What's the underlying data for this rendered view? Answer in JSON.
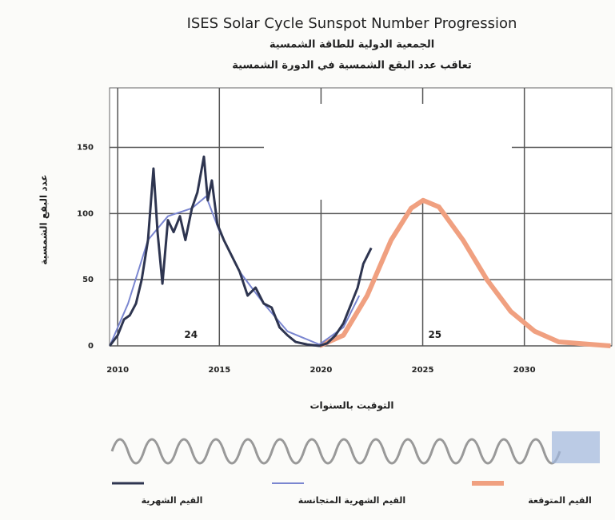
{
  "chart_data": {
    "type": "line",
    "title": "ISES Solar Cycle Sunspot Number Progression",
    "subtitles": [
      "الجمعية الدولية للطاقة الشمسية",
      "تعاقب عدد البقع الشمسية في الدورة الشمسية"
    ],
    "y_label": "عدد البقع الشمسية",
    "x_label": "التوقيت بالسنوات",
    "annotations": [
      {
        "text": "24",
        "x": 2013.6,
        "y": 8
      },
      {
        "text": "25",
        "x": 2025.6,
        "y": 8
      }
    ],
    "xlim": [
      2009.6,
      2034.3
    ],
    "xticks": [
      2010,
      2015,
      2020,
      2025,
      2030
    ],
    "ylim": [
      0,
      195
    ],
    "yticks": [
      0,
      50,
      100,
      150
    ],
    "grid": true,
    "series": [
      {
        "name": "القيم الشهرية",
        "color": "#2e3550",
        "width": 3,
        "x": [
          2009.61,
          2010.0,
          2010.31,
          2010.59,
          2010.9,
          2011.18,
          2011.49,
          2011.76,
          2011.96,
          2012.2,
          2012.47,
          2012.75,
          2013.06,
          2013.33,
          2013.65,
          2013.92,
          2014.24,
          2014.43,
          2014.63,
          2014.9,
          2015.22,
          2015.61,
          2016.0,
          2016.39,
          2016.78,
          2017.18,
          2017.57,
          2017.96,
          2018.35,
          2018.75,
          2019.33,
          2019.92,
          2020.31,
          2020.71,
          2021.1,
          2021.49,
          2021.8,
          2022.08,
          2022.47
        ],
        "values": [
          0,
          8,
          20,
          23,
          32,
          50,
          80,
          134,
          86,
          47,
          95,
          86,
          98,
          80,
          104,
          116,
          143,
          110,
          125,
          92,
          80,
          68,
          56,
          38,
          44,
          32,
          29,
          14,
          8,
          3,
          1,
          0,
          2,
          8,
          17,
          32,
          44,
          62,
          74
        ]
      },
      {
        "name": "القيم الشهرية المتجانسة",
        "color": "#7a86d0",
        "width": 2,
        "x": [
          2009.61,
          2010.51,
          2011.49,
          2012.47,
          2013.65,
          2014.35,
          2015.02,
          2016.0,
          2017.18,
          2018.35,
          2019.92,
          2021.1,
          2021.88
        ],
        "values": [
          0,
          32,
          80,
          98,
          104,
          113,
          86,
          56,
          32,
          11,
          1,
          14,
          38
        ]
      },
      {
        "name": "القيم المتوقعة",
        "color": "#f0a080",
        "width": 6,
        "x": [
          2019.92,
          2021.1,
          2022.27,
          2023.45,
          2024.43,
          2025.02,
          2025.8,
          2026.98,
          2028.16,
          2029.33,
          2030.51,
          2031.69,
          2034.24
        ],
        "values": [
          0,
          8,
          38,
          80,
          104,
          110,
          105,
          80,
          50,
          26,
          11,
          3,
          0
        ]
      }
    ]
  }
}
